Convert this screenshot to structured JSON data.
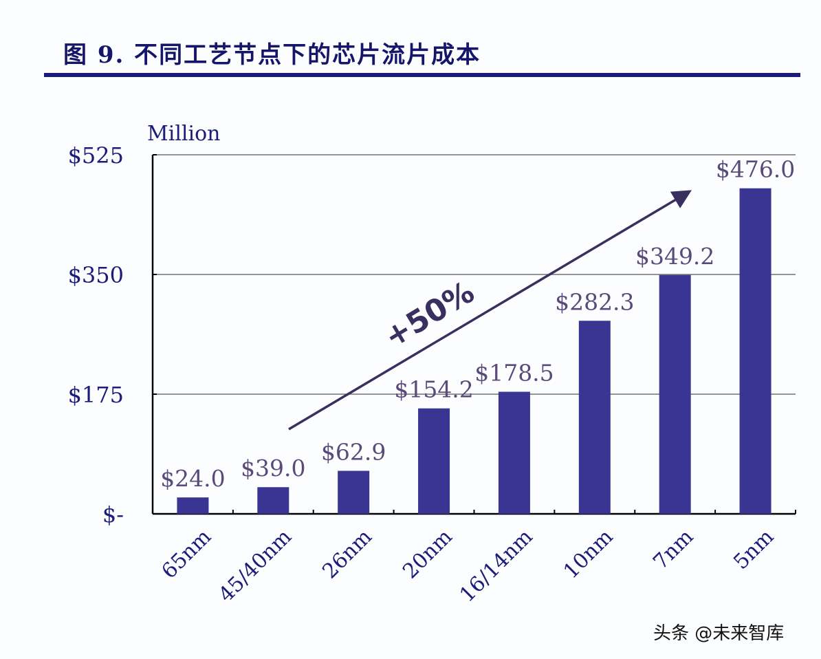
{
  "title": "图 9. 不同工艺节点下的芯片流片成本",
  "watermark": "头条 @未来智库",
  "chart_data": {
    "type": "bar",
    "title": "图 9. 不同工艺节点下的芯片流片成本",
    "ylabel": "Million",
    "categories": [
      "65nm",
      "45/40nm",
      "26nm",
      "20nm",
      "16/14nm",
      "10nm",
      "7nm",
      "5nm"
    ],
    "values": [
      24.0,
      39.0,
      62.9,
      154.2,
      178.5,
      282.3,
      349.2,
      476.0
    ],
    "data_labels": [
      "$24.0",
      "$39.0",
      "$62.9",
      "$154.2",
      "$178.5",
      "$282.3",
      "$349.2",
      "$476.0"
    ],
    "ylim": [
      0,
      525
    ],
    "yticks": [
      0,
      175,
      350,
      525
    ],
    "ytick_labels": [
      "$-",
      "$175",
      "$350",
      "$525"
    ],
    "grid": true,
    "annotation": "+50%",
    "colors": {
      "bar": "#3a3592",
      "text": "#1c1c7a",
      "label": "#5a4a7a",
      "arrow": "#3a2f5e"
    }
  }
}
